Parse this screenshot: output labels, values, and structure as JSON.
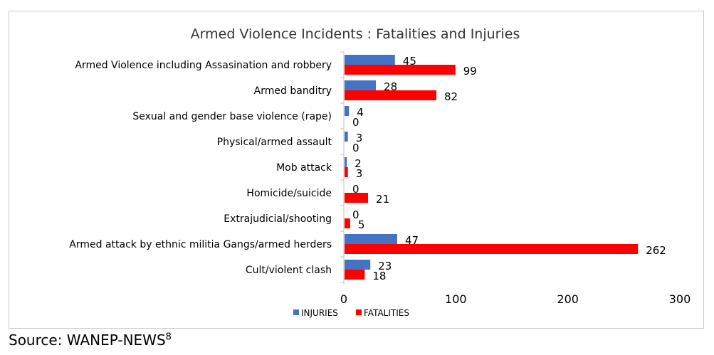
{
  "source": {
    "text": "Source: WANEP-NEWS",
    "footnote": "8"
  },
  "chart_data": {
    "type": "bar",
    "orientation": "horizontal",
    "title": "Armed Violence Incidents : Fatalities and Injuries",
    "categories": [
      "Armed Violence including Assasination and robbery",
      "Armed banditry",
      "Sexual and gender base violence (rape)",
      "Physical/armed assault",
      "Mob attack",
      "Homicide/suicide",
      "Extrajudicial/shooting",
      "Armed attack by ethnic militia Gangs/armed herders",
      "Cult/violent clash"
    ],
    "series": [
      {
        "name": "INJURIES",
        "color": "#4472C4",
        "values": [
          45,
          28,
          4,
          3,
          2,
          0,
          0,
          47,
          23
        ]
      },
      {
        "name": "FATALITIES",
        "color": "#FF0000",
        "values": [
          99,
          82,
          0,
          0,
          3,
          21,
          5,
          262,
          18
        ]
      }
    ],
    "xlim": [
      0,
      300
    ],
    "xticks": [
      "0",
      "100",
      "200",
      "300"
    ],
    "grid": false,
    "legend_position": "bottom",
    "data_labels": true
  }
}
